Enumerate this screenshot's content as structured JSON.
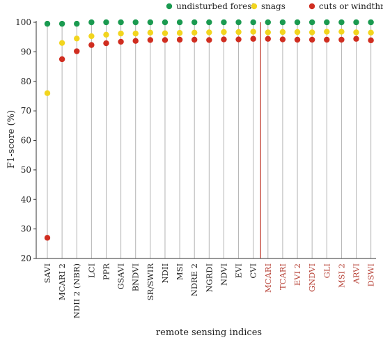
{
  "chart_data": {
    "type": "scatter",
    "title": "",
    "xlabel": "remote sensing indices",
    "ylabel": "F1-score (%)",
    "ylim": [
      20,
      100
    ],
    "yticks": [
      20,
      30,
      40,
      50,
      60,
      70,
      80,
      90,
      100
    ],
    "grid": "vertical lines at each index",
    "legend_position": "top",
    "highlight_separator_after": "CVI",
    "categories": [
      "SAVI",
      "MCARI 2",
      "NDII 2 (NBR)",
      "LCI",
      "PPR",
      "GSAVI",
      "BNDVI",
      "SR/SWIR",
      "NDII",
      "MSI",
      "NDRE 2",
      "NGRDI",
      "NDVI",
      "EVI",
      "CVI",
      "MCARI",
      "TCARI",
      "EVI 2",
      "GNDVI",
      "GLI",
      "MSI 2",
      "ARVI",
      "DSWI"
    ],
    "highlighted_categories": [
      "MCARI",
      "TCARI",
      "EVI 2",
      "GNDVI",
      "GLI",
      "MSI 2",
      "ARVI",
      "DSWI"
    ],
    "series": [
      {
        "name": "undisturbed forest",
        "color": "#1a9a50",
        "values": [
          99.5,
          99.5,
          99.5,
          100,
          100,
          100,
          100,
          100,
          100,
          100,
          100,
          100,
          100,
          100,
          100,
          100,
          100,
          100,
          100,
          100,
          100,
          100,
          100
        ]
      },
      {
        "name": "snags",
        "color": "#f2d51e",
        "values": [
          76,
          93,
          94.5,
          95.3,
          95.8,
          96.2,
          96.2,
          96.5,
          96.3,
          96.4,
          96.5,
          96.6,
          96.7,
          96.7,
          96.8,
          96.6,
          96.7,
          96.7,
          96.6,
          96.8,
          96.8,
          96.6,
          96.5
        ]
      },
      {
        "name": "cuts or windthrow",
        "color": "#d02d20",
        "values": [
          27,
          87.5,
          90.2,
          92.3,
          92.9,
          93.4,
          93.7,
          94,
          94,
          94.1,
          94.1,
          94,
          94.2,
          94.2,
          94.4,
          94.4,
          94.2,
          94.1,
          94.1,
          94.1,
          94.1,
          94.4,
          93.9
        ]
      }
    ]
  },
  "colors": {
    "highlight_label": "#b8453a",
    "separator": "#c0392b",
    "gridline": "#b3b3b3",
    "axis": "#333333"
  }
}
